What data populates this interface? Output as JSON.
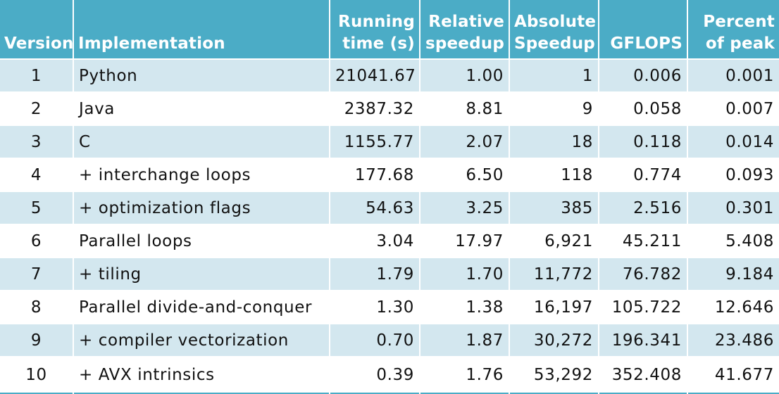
{
  "table": {
    "headers": [
      "Version",
      "Implementation",
      "Running time (s)",
      "Relative speedup",
      "Absolute Speedup",
      "GFLOPS",
      "Percent of peak"
    ],
    "header_lines": [
      [
        "Version"
      ],
      [
        "Implementation"
      ],
      [
        "Running",
        "time (s)"
      ],
      [
        "Relative",
        "speedup"
      ],
      [
        "Absolute",
        "Speedup"
      ],
      [
        "GFLOPS"
      ],
      [
        "Percent",
        "of peak"
      ]
    ],
    "rows": [
      [
        "1",
        "Python",
        "21041.67",
        "1.00",
        "1",
        "0.006",
        "0.001"
      ],
      [
        "2",
        "Java",
        "2387.32",
        "8.81",
        "9",
        "0.058",
        "0.007"
      ],
      [
        "3",
        "C",
        "1155.77",
        "2.07",
        "18",
        "0.118",
        "0.014"
      ],
      [
        "4",
        "+ interchange loops",
        "177.68",
        "6.50",
        "118",
        "0.774",
        "0.093"
      ],
      [
        "5",
        "+ optimization flags",
        "54.63",
        "3.25",
        "385",
        "2.516",
        "0.301"
      ],
      [
        "6",
        "Parallel loops",
        "3.04",
        "17.97",
        "6,921",
        "45.211",
        "5.408"
      ],
      [
        "7",
        "+ tiling",
        "1.79",
        "1.70",
        "11,772",
        "76.782",
        "9.184"
      ],
      [
        "8",
        "Parallel divide-and-conquer",
        "1.30",
        "1.38",
        "16,197",
        "105.722",
        "12.646"
      ],
      [
        "9",
        "+ compiler vectorization",
        "0.70",
        "1.87",
        "30,272",
        "196.341",
        "23.486"
      ],
      [
        "10",
        "+ AVX intrinsics",
        "0.39",
        "1.76",
        "53,292",
        "352.408",
        "41.677"
      ]
    ]
  },
  "colors": {
    "header_bg": "#4bacc6",
    "header_text": "#ffffff",
    "row_odd_bg": "#d3e7ef",
    "row_even_bg": "#ffffff",
    "text": "#111111"
  }
}
